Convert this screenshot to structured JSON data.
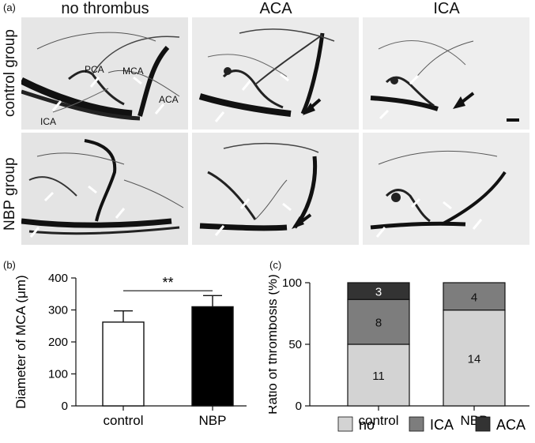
{
  "panel_a": {
    "letter": "(a)",
    "columns": [
      "no thrombus",
      "ACA",
      "ICA"
    ],
    "rows": [
      "control group",
      "NBP group"
    ],
    "vessel_labels": [
      "PCA",
      "MCA",
      "ACA",
      "ICA"
    ]
  },
  "panel_b": {
    "letter": "(b)"
  },
  "panel_c": {
    "letter": "(c)"
  },
  "chart_data": [
    {
      "type": "bar",
      "categories": [
        "control",
        "NBP"
      ],
      "values": [
        262,
        310
      ],
      "errors": [
        35,
        35
      ],
      "bar_colors": [
        "#ffffff",
        "#000000"
      ],
      "ylabel": "Diameter of MCA (μm)",
      "ylim": [
        0,
        400
      ],
      "yticks": [
        0,
        100,
        200,
        300,
        400
      ],
      "significance": "**"
    },
    {
      "type": "bar",
      "stacked": true,
      "categories": [
        "control",
        "NBP"
      ],
      "series": [
        {
          "name": "no",
          "color": "#d3d3d3",
          "values": [
            11,
            14
          ],
          "ratio": [
            50.0,
            77.8
          ]
        },
        {
          "name": "ICA",
          "color": "#7d7d7d",
          "values": [
            8,
            4
          ],
          "ratio": [
            36.4,
            22.2
          ]
        },
        {
          "name": "ACA",
          "color": "#333333",
          "values": [
            3,
            0
          ],
          "ratio": [
            13.6,
            0
          ]
        }
      ],
      "ylabel": "Ratio of thrombosis (%)",
      "ylim": [
        0,
        100
      ],
      "yticks": [
        0,
        50,
        100
      ],
      "legend": "bottom"
    }
  ]
}
